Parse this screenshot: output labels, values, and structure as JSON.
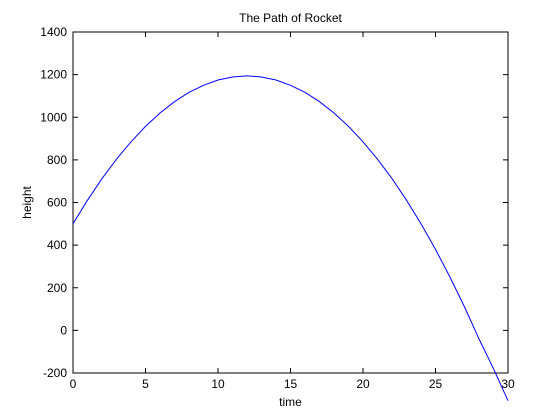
{
  "chart_data": {
    "type": "line",
    "title": "The Path of Rocket",
    "xlabel": "time",
    "ylabel": "height",
    "xlim": [
      0,
      30
    ],
    "ylim": [
      -200,
      1400
    ],
    "xticks": [
      0,
      5,
      10,
      15,
      20,
      25,
      30
    ],
    "yticks": [
      -200,
      0,
      200,
      400,
      600,
      800,
      1000,
      1200,
      1400
    ],
    "grid": false,
    "series": [
      {
        "color": "#0000ff",
        "x": [
          0,
          1,
          2,
          3,
          4,
          5,
          6,
          7,
          8,
          9,
          10,
          11,
          12,
          13,
          14,
          15,
          16,
          17,
          18,
          19,
          20,
          21,
          22,
          23,
          24,
          25,
          26,
          27,
          28,
          29,
          30
        ],
        "y": [
          500,
          611,
          712,
          803,
          885,
          957,
          1020,
          1073,
          1117,
          1150,
          1175,
          1189,
          1194,
          1189,
          1175,
          1150,
          1117,
          1073,
          1020,
          957,
          885,
          803,
          712,
          611,
          500,
          380,
          250,
          110,
          -40,
          -180,
          -330
        ]
      }
    ]
  }
}
